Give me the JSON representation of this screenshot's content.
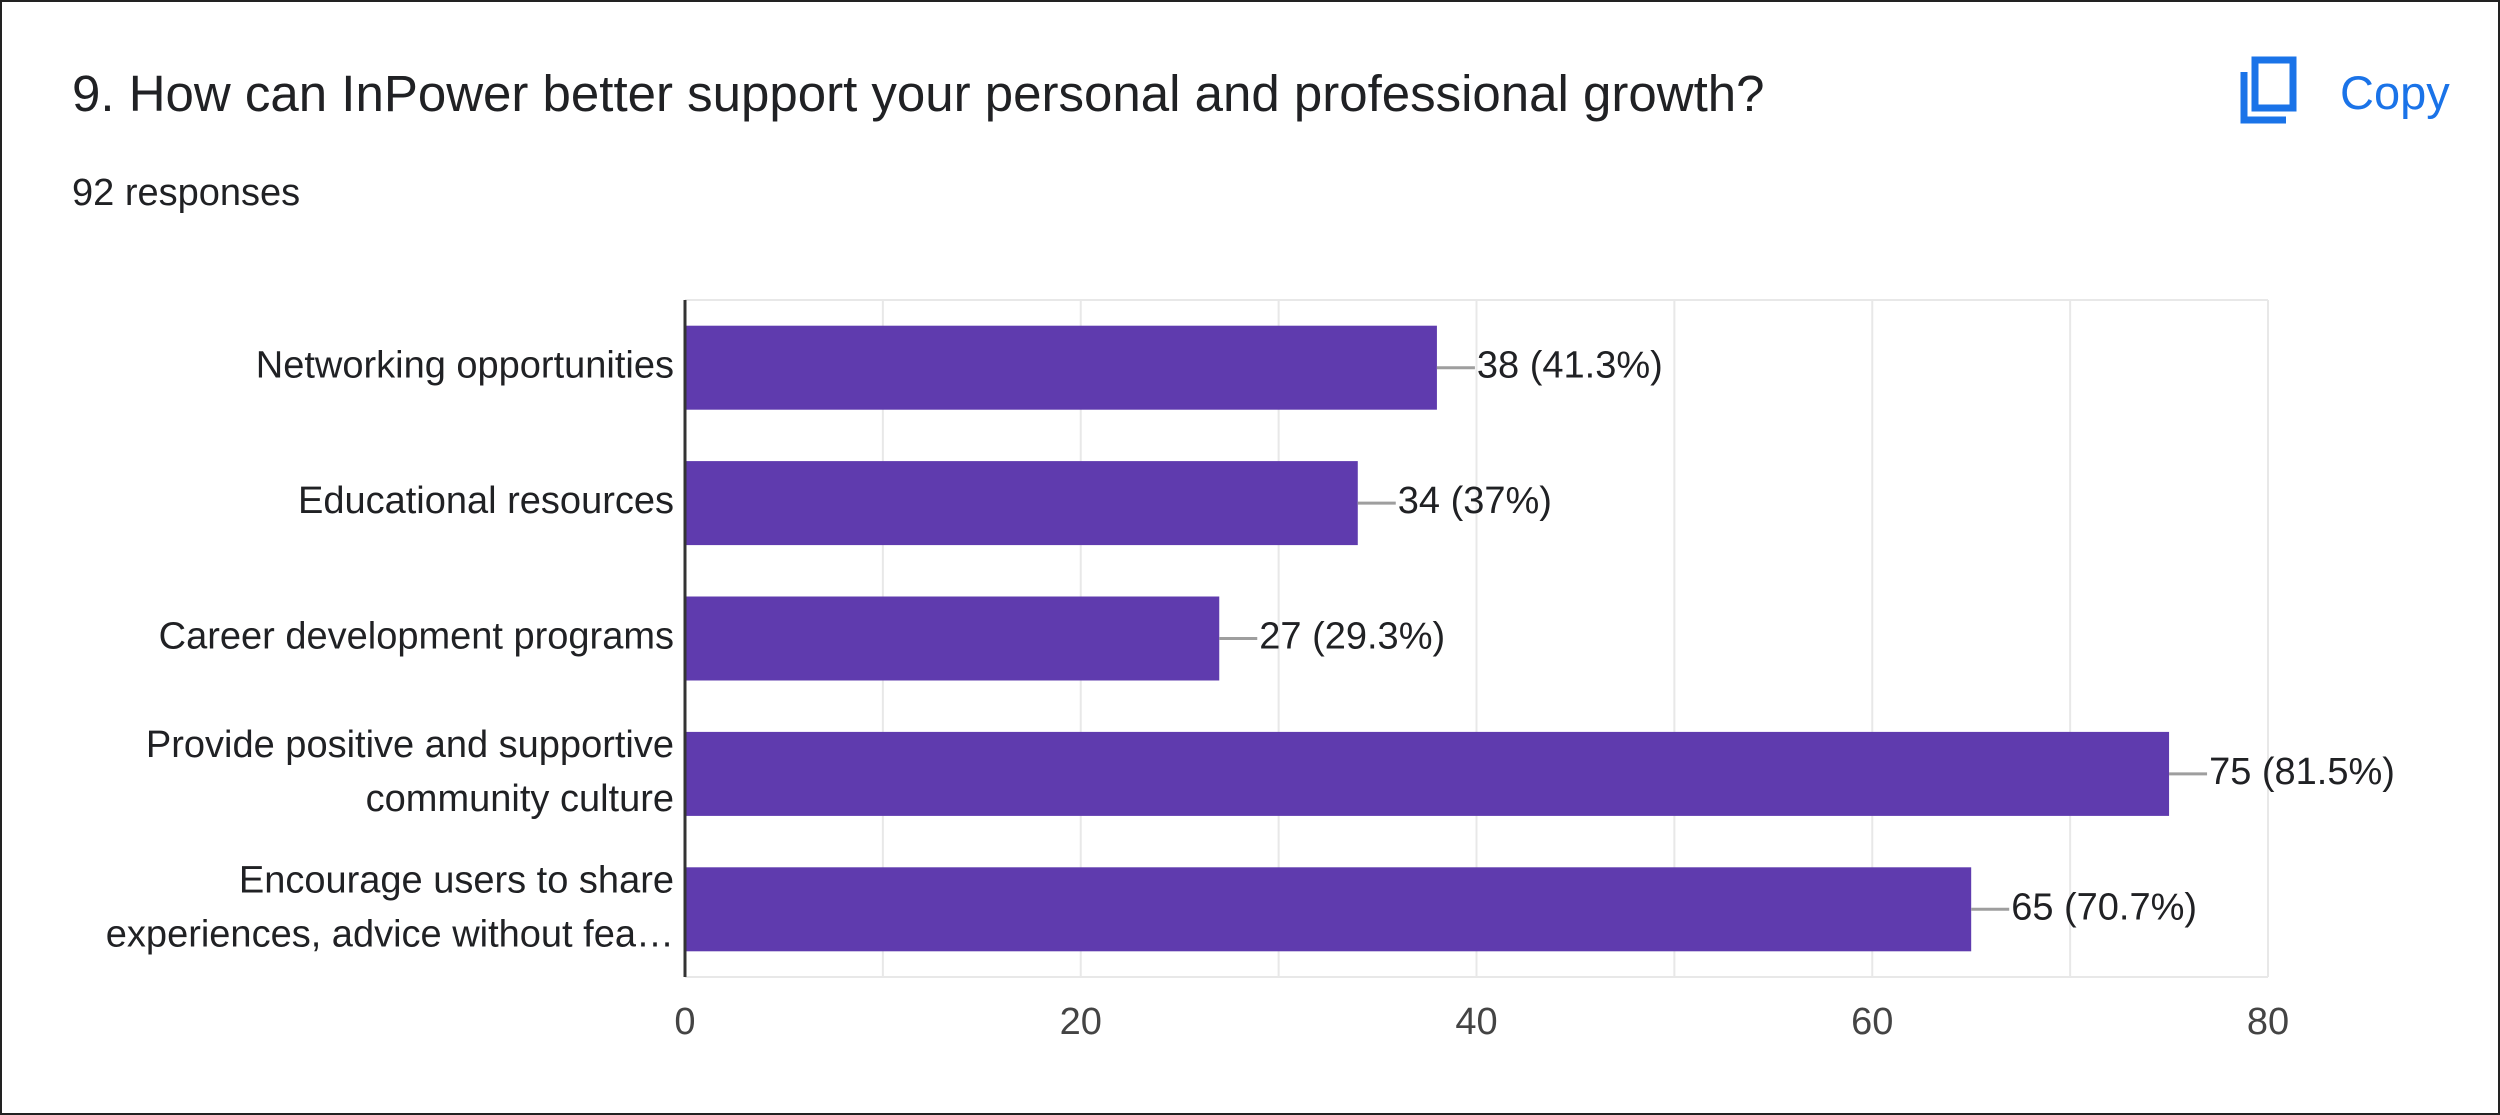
{
  "question": {
    "title": "9. How can InPower better support your personal and professional growth?",
    "response_count": "92 responses"
  },
  "copy_button": {
    "label": "Copy",
    "icon": "copy-icon"
  },
  "colors": {
    "bar": "#5f3bae",
    "accent": "#1a73e8",
    "text": "#202124",
    "axis_label": "#444444",
    "grid": "#e8e8e8"
  },
  "chart_data": {
    "type": "bar",
    "orientation": "horizontal",
    "categories": [
      [
        "Networking opportunities"
      ],
      [
        "Educational resources"
      ],
      [
        "Career development programs"
      ],
      [
        "Provide positive and supportive",
        "community culture"
      ],
      [
        "Encourage users to share",
        "experiences, advice without fea…"
      ]
    ],
    "values": [
      38,
      34,
      27,
      75,
      65
    ],
    "data_labels": [
      "38 (41.3%)",
      "34 (37%)",
      "27 (29.3%)",
      "75 (81.5%)",
      "65 (70.7%)"
    ],
    "xlim": [
      0,
      80
    ],
    "x_ticks": [
      0,
      20,
      40,
      60,
      80
    ],
    "grid": true
  }
}
